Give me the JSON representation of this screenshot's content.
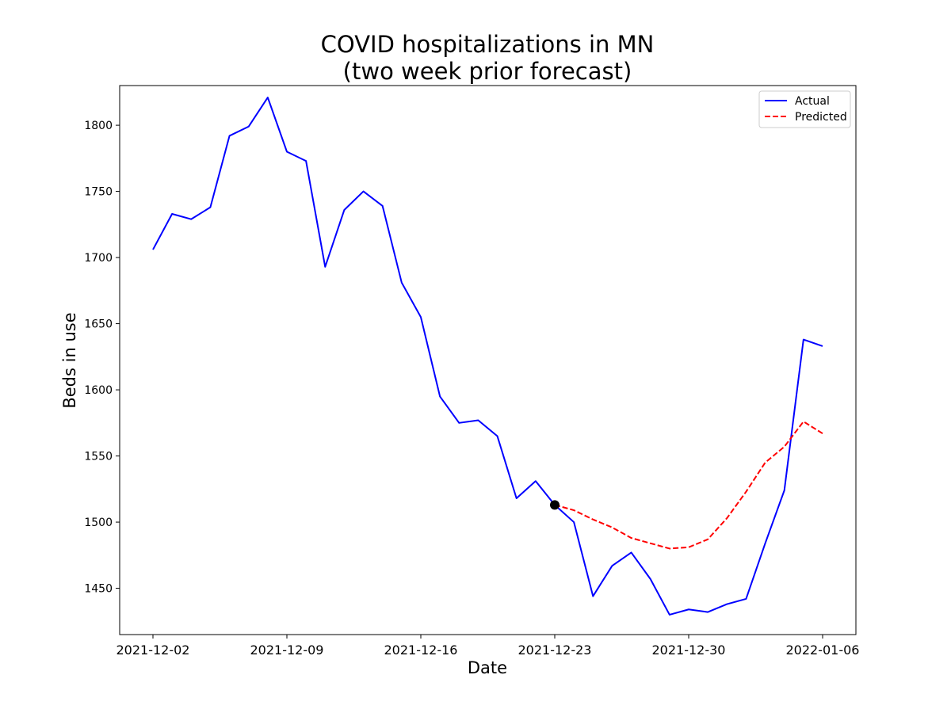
{
  "chart_data": {
    "type": "line",
    "title_line1": "COVID hospitalizations in MN",
    "title_line2": "(two week prior forecast)",
    "xlabel": "Date",
    "ylabel": "Beds in use",
    "x_ticks": [
      "2021-12-02",
      "2021-12-09",
      "2021-12-16",
      "2021-12-23",
      "2021-12-30",
      "2022-01-06"
    ],
    "y_ticks": [
      1450,
      1500,
      1550,
      1600,
      1650,
      1700,
      1750,
      1800
    ],
    "xlim": [
      "2021-12-0025",
      "2022-01-0775"
    ],
    "ylim": [
      1415,
      1830
    ],
    "legend_position": "upper-right",
    "series": [
      {
        "name": "Actual",
        "color": "#0000ff",
        "style": "solid",
        "x": [
          "2021-12-02",
          "2021-12-03",
          "2021-12-04",
          "2021-12-05",
          "2021-12-06",
          "2021-12-07",
          "2021-12-08",
          "2021-12-09",
          "2021-12-10",
          "2021-12-11",
          "2021-12-12",
          "2021-12-13",
          "2021-12-14",
          "2021-12-15",
          "2021-12-16",
          "2021-12-17",
          "2021-12-18",
          "2021-12-19",
          "2021-12-20",
          "2021-12-21",
          "2021-12-22",
          "2021-12-23",
          "2021-12-24",
          "2021-12-25",
          "2021-12-26",
          "2021-12-27",
          "2021-12-28",
          "2021-12-29",
          "2021-12-30",
          "2021-12-31",
          "2022-01-01",
          "2022-01-02",
          "2022-01-03",
          "2022-01-04",
          "2022-01-05",
          "2022-01-06"
        ],
        "y": [
          1706,
          1733,
          1729,
          1738,
          1792,
          1799,
          1821,
          1780,
          1773,
          1693,
          1736,
          1750,
          1739,
          1681,
          1655,
          1595,
          1575,
          1577,
          1565,
          1518,
          1531,
          1513,
          1500,
          1444,
          1467,
          1477,
          1457,
          1430,
          1434,
          1432,
          1438,
          1442,
          1484,
          1524,
          1638,
          1633
        ]
      },
      {
        "name": "Predicted",
        "color": "#ff0000",
        "style": "dashed",
        "x": [
          "2021-12-23",
          "2021-12-24",
          "2021-12-25",
          "2021-12-26",
          "2021-12-27",
          "2021-12-28",
          "2021-12-29",
          "2021-12-30",
          "2021-12-31",
          "2022-01-01",
          "2022-01-02",
          "2022-01-03",
          "2022-01-04",
          "2022-01-05",
          "2022-01-06"
        ],
        "y": [
          1513,
          1509,
          1502,
          1496,
          1488,
          1484,
          1480,
          1481,
          1487,
          1503,
          1523,
          1545,
          1557,
          1576,
          1567
        ]
      }
    ],
    "marker": {
      "x": "2021-12-23",
      "y": 1513,
      "color": "#000000"
    }
  }
}
